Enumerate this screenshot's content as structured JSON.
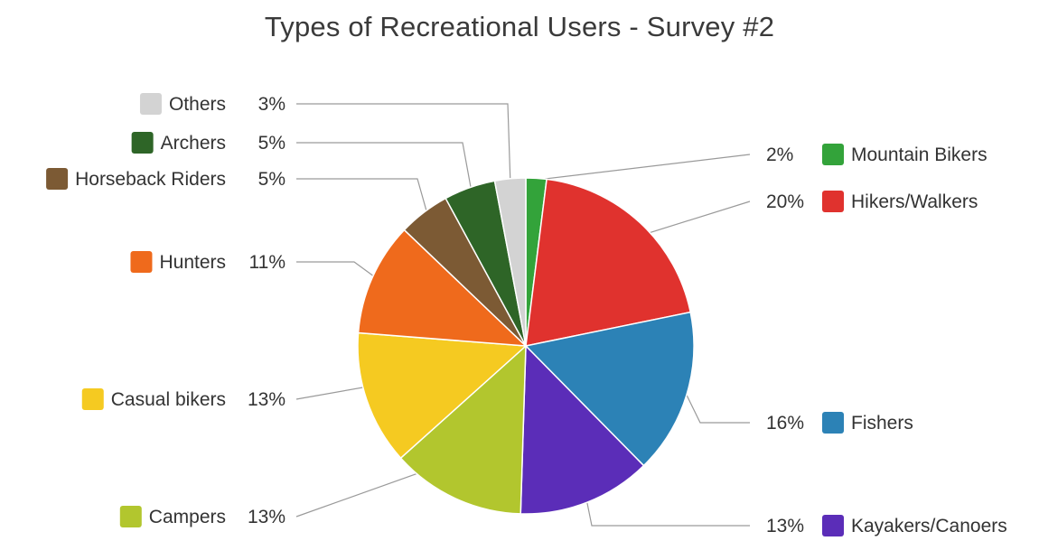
{
  "chart_data": {
    "type": "pie",
    "title": "Types of Recreational Users - Survey #2",
    "slices": [
      {
        "label": "Mountain Bikers",
        "value": 2,
        "display": "2%",
        "color": "#33a33a"
      },
      {
        "label": "Hikers/Walkers",
        "value": 20,
        "display": "20%",
        "color": "#e0322e"
      },
      {
        "label": "Fishers",
        "value": 16,
        "display": "16%",
        "color": "#2c82b6"
      },
      {
        "label": "Kayakers/Canoers",
        "value": 13,
        "display": "13%",
        "color": "#5b2db8"
      },
      {
        "label": "Campers",
        "value": 13,
        "display": "13%",
        "color": "#b2c62e"
      },
      {
        "label": "Casual bikers",
        "value": 13,
        "display": "13%",
        "color": "#f5ca21"
      },
      {
        "label": "Hunters",
        "value": 11,
        "display": "11%",
        "color": "#ef6a1c"
      },
      {
        "label": "Horseback Riders",
        "value": 5,
        "display": "5%",
        "color": "#7c5a34"
      },
      {
        "label": "Archers",
        "value": 5,
        "display": "5%",
        "color": "#2e6527"
      },
      {
        "label": "Others",
        "value": 3,
        "display": "3%",
        "color": "#d3d3d3"
      }
    ],
    "start_angle_deg": 0,
    "direction": "clockwise"
  }
}
